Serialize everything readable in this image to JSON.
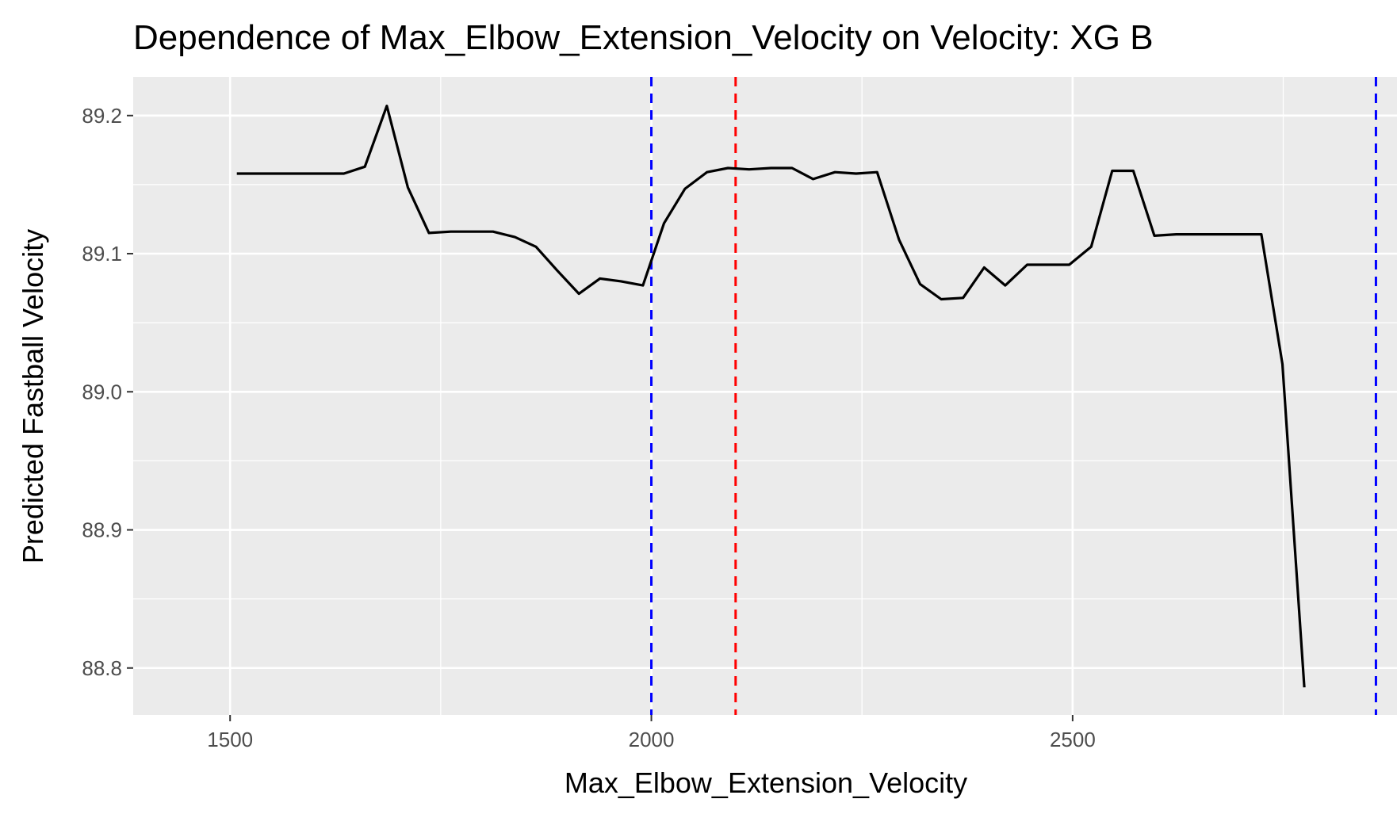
{
  "chart_data": {
    "type": "line",
    "title": "Dependence of Max_Elbow_Extension_Velocity on Velocity: XG B",
    "xlabel": "Max_Elbow_Extension_Velocity",
    "ylabel": "Predicted Fastball Velocity",
    "xlim": [
      1385,
      2885
    ],
    "ylim": [
      88.766,
      89.228
    ],
    "x_ticks": [
      1500,
      2000,
      2500
    ],
    "x_tick_labels": [
      "1500",
      "2000",
      "2500"
    ],
    "y_ticks": [
      88.8,
      88.9,
      89.0,
      89.1,
      89.2
    ],
    "y_tick_labels": [
      "88.8",
      "88.9",
      "89.0",
      "89.1",
      "89.2"
    ],
    "grid": true,
    "background": "#ebebeb",
    "series": [
      {
        "color": "#000000",
        "x": [
          1508,
          1535,
          1560,
          1585,
          1610,
          1635,
          1660,
          1686,
          1711,
          1736,
          1762,
          1787,
          1812,
          1838,
          1863,
          1888,
          1914,
          1939,
          1964,
          1990,
          2015,
          2040,
          2066,
          2091,
          2116,
          2142,
          2167,
          2192,
          2218,
          2243,
          2268,
          2294,
          2319,
          2344,
          2370,
          2395,
          2420,
          2446,
          2471,
          2496,
          2522,
          2547,
          2572,
          2597,
          2623,
          2648,
          2673,
          2699,
          2724,
          2749,
          2775
        ],
        "y": [
          89.158,
          89.158,
          89.158,
          89.158,
          89.158,
          89.158,
          89.163,
          89.207,
          89.148,
          89.115,
          89.116,
          89.116,
          89.116,
          89.112,
          89.105,
          89.088,
          89.071,
          89.082,
          89.08,
          89.077,
          89.122,
          89.147,
          89.159,
          89.162,
          89.161,
          89.162,
          89.162,
          89.154,
          89.159,
          89.158,
          89.159,
          89.11,
          89.078,
          89.067,
          89.068,
          89.09,
          89.077,
          89.092,
          89.092,
          89.092,
          89.105,
          89.16,
          89.16,
          89.113,
          89.114,
          89.114,
          89.114,
          89.114,
          89.114,
          89.02,
          88.786
        ]
      }
    ],
    "vlines": [
      {
        "x": 2000,
        "color": "#0000ff",
        "style": "dashed"
      },
      {
        "x": 2100,
        "color": "#ff0000",
        "style": "dashed"
      },
      {
        "x": 2860,
        "color": "#0000ff",
        "style": "dashed"
      }
    ]
  }
}
